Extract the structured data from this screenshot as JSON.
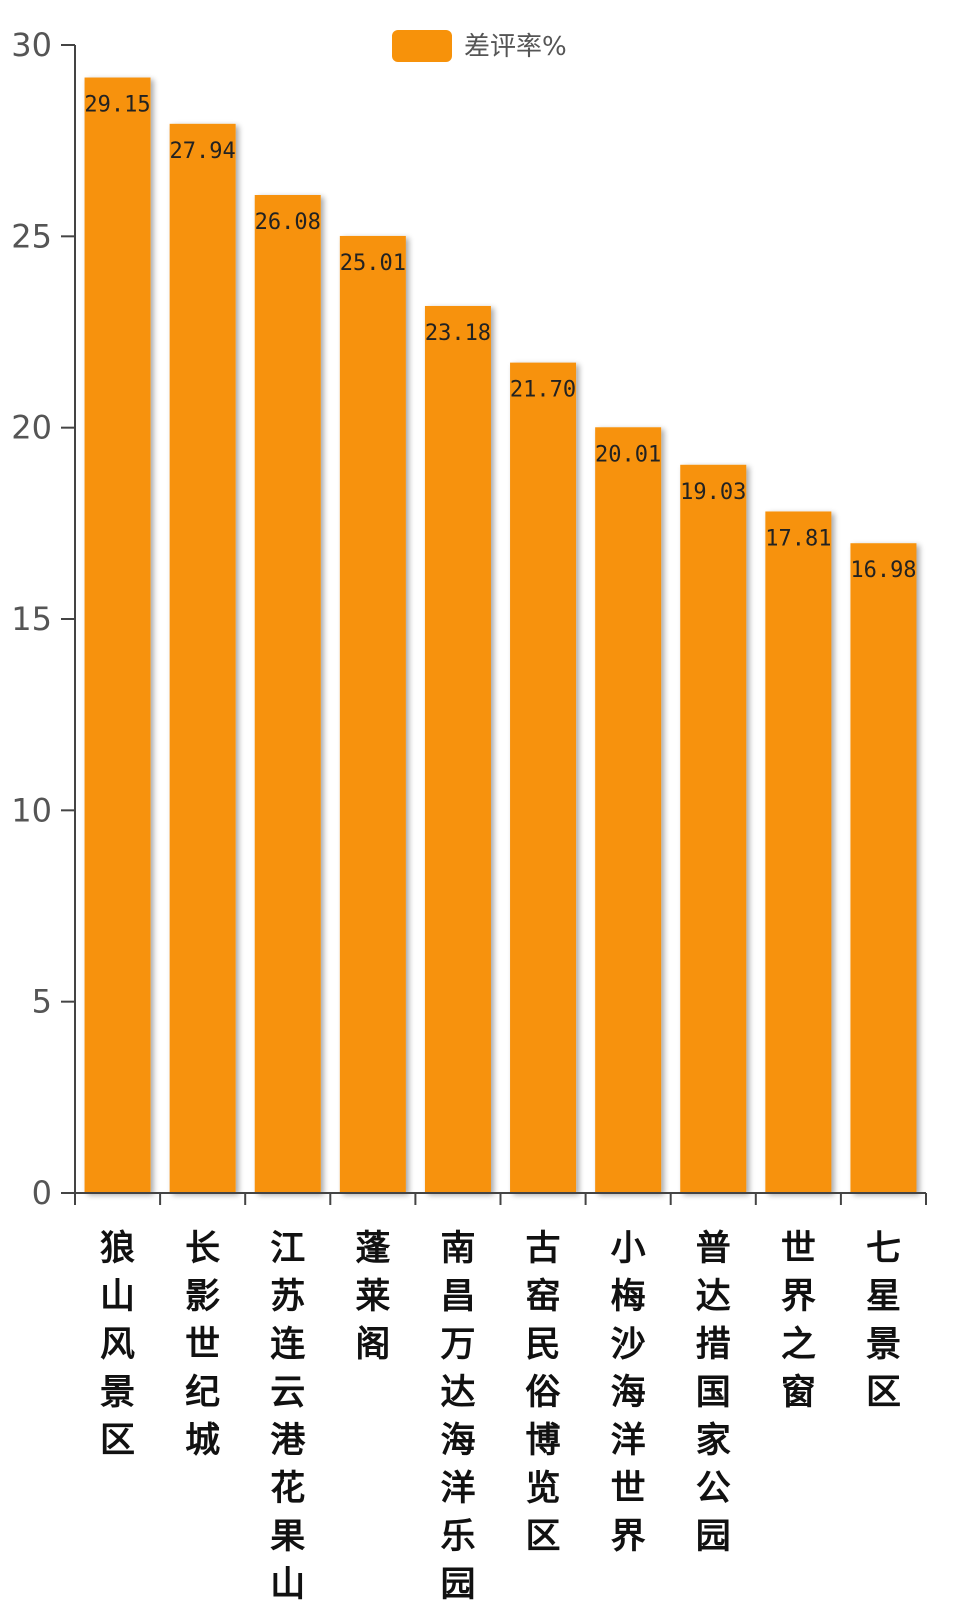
{
  "chart_data": {
    "type": "bar",
    "categories": [
      "狼山风景区",
      "长影世纪城",
      "江苏连云港花果山",
      "蓬莱阁",
      "南昌万达海洋乐园",
      "古窑民俗博览区",
      "小梅沙海洋世界",
      "普达措国家公园",
      "世界之窗",
      "七星景区"
    ],
    "series": [
      {
        "name": "差评率%",
        "values": [
          29.15,
          27.94,
          26.08,
          25.01,
          23.18,
          21.7,
          20.01,
          19.03,
          17.81,
          16.98
        ],
        "labels": [
          "29.15",
          "27.94",
          "26.08",
          "25.01",
          "23.18",
          "21.70",
          "20.01",
          "19.03",
          "17.81",
          "16.98"
        ]
      }
    ],
    "y_ticks": [
      "0",
      "5",
      "10",
      "15",
      "20",
      "25",
      "30"
    ],
    "ylim": [
      0,
      30
    ],
    "xlabel": "",
    "ylabel": "",
    "title": "",
    "legend_position": "top-center",
    "grid": false
  },
  "colors": {
    "bar": "#f7920a",
    "axis": "#444444"
  }
}
